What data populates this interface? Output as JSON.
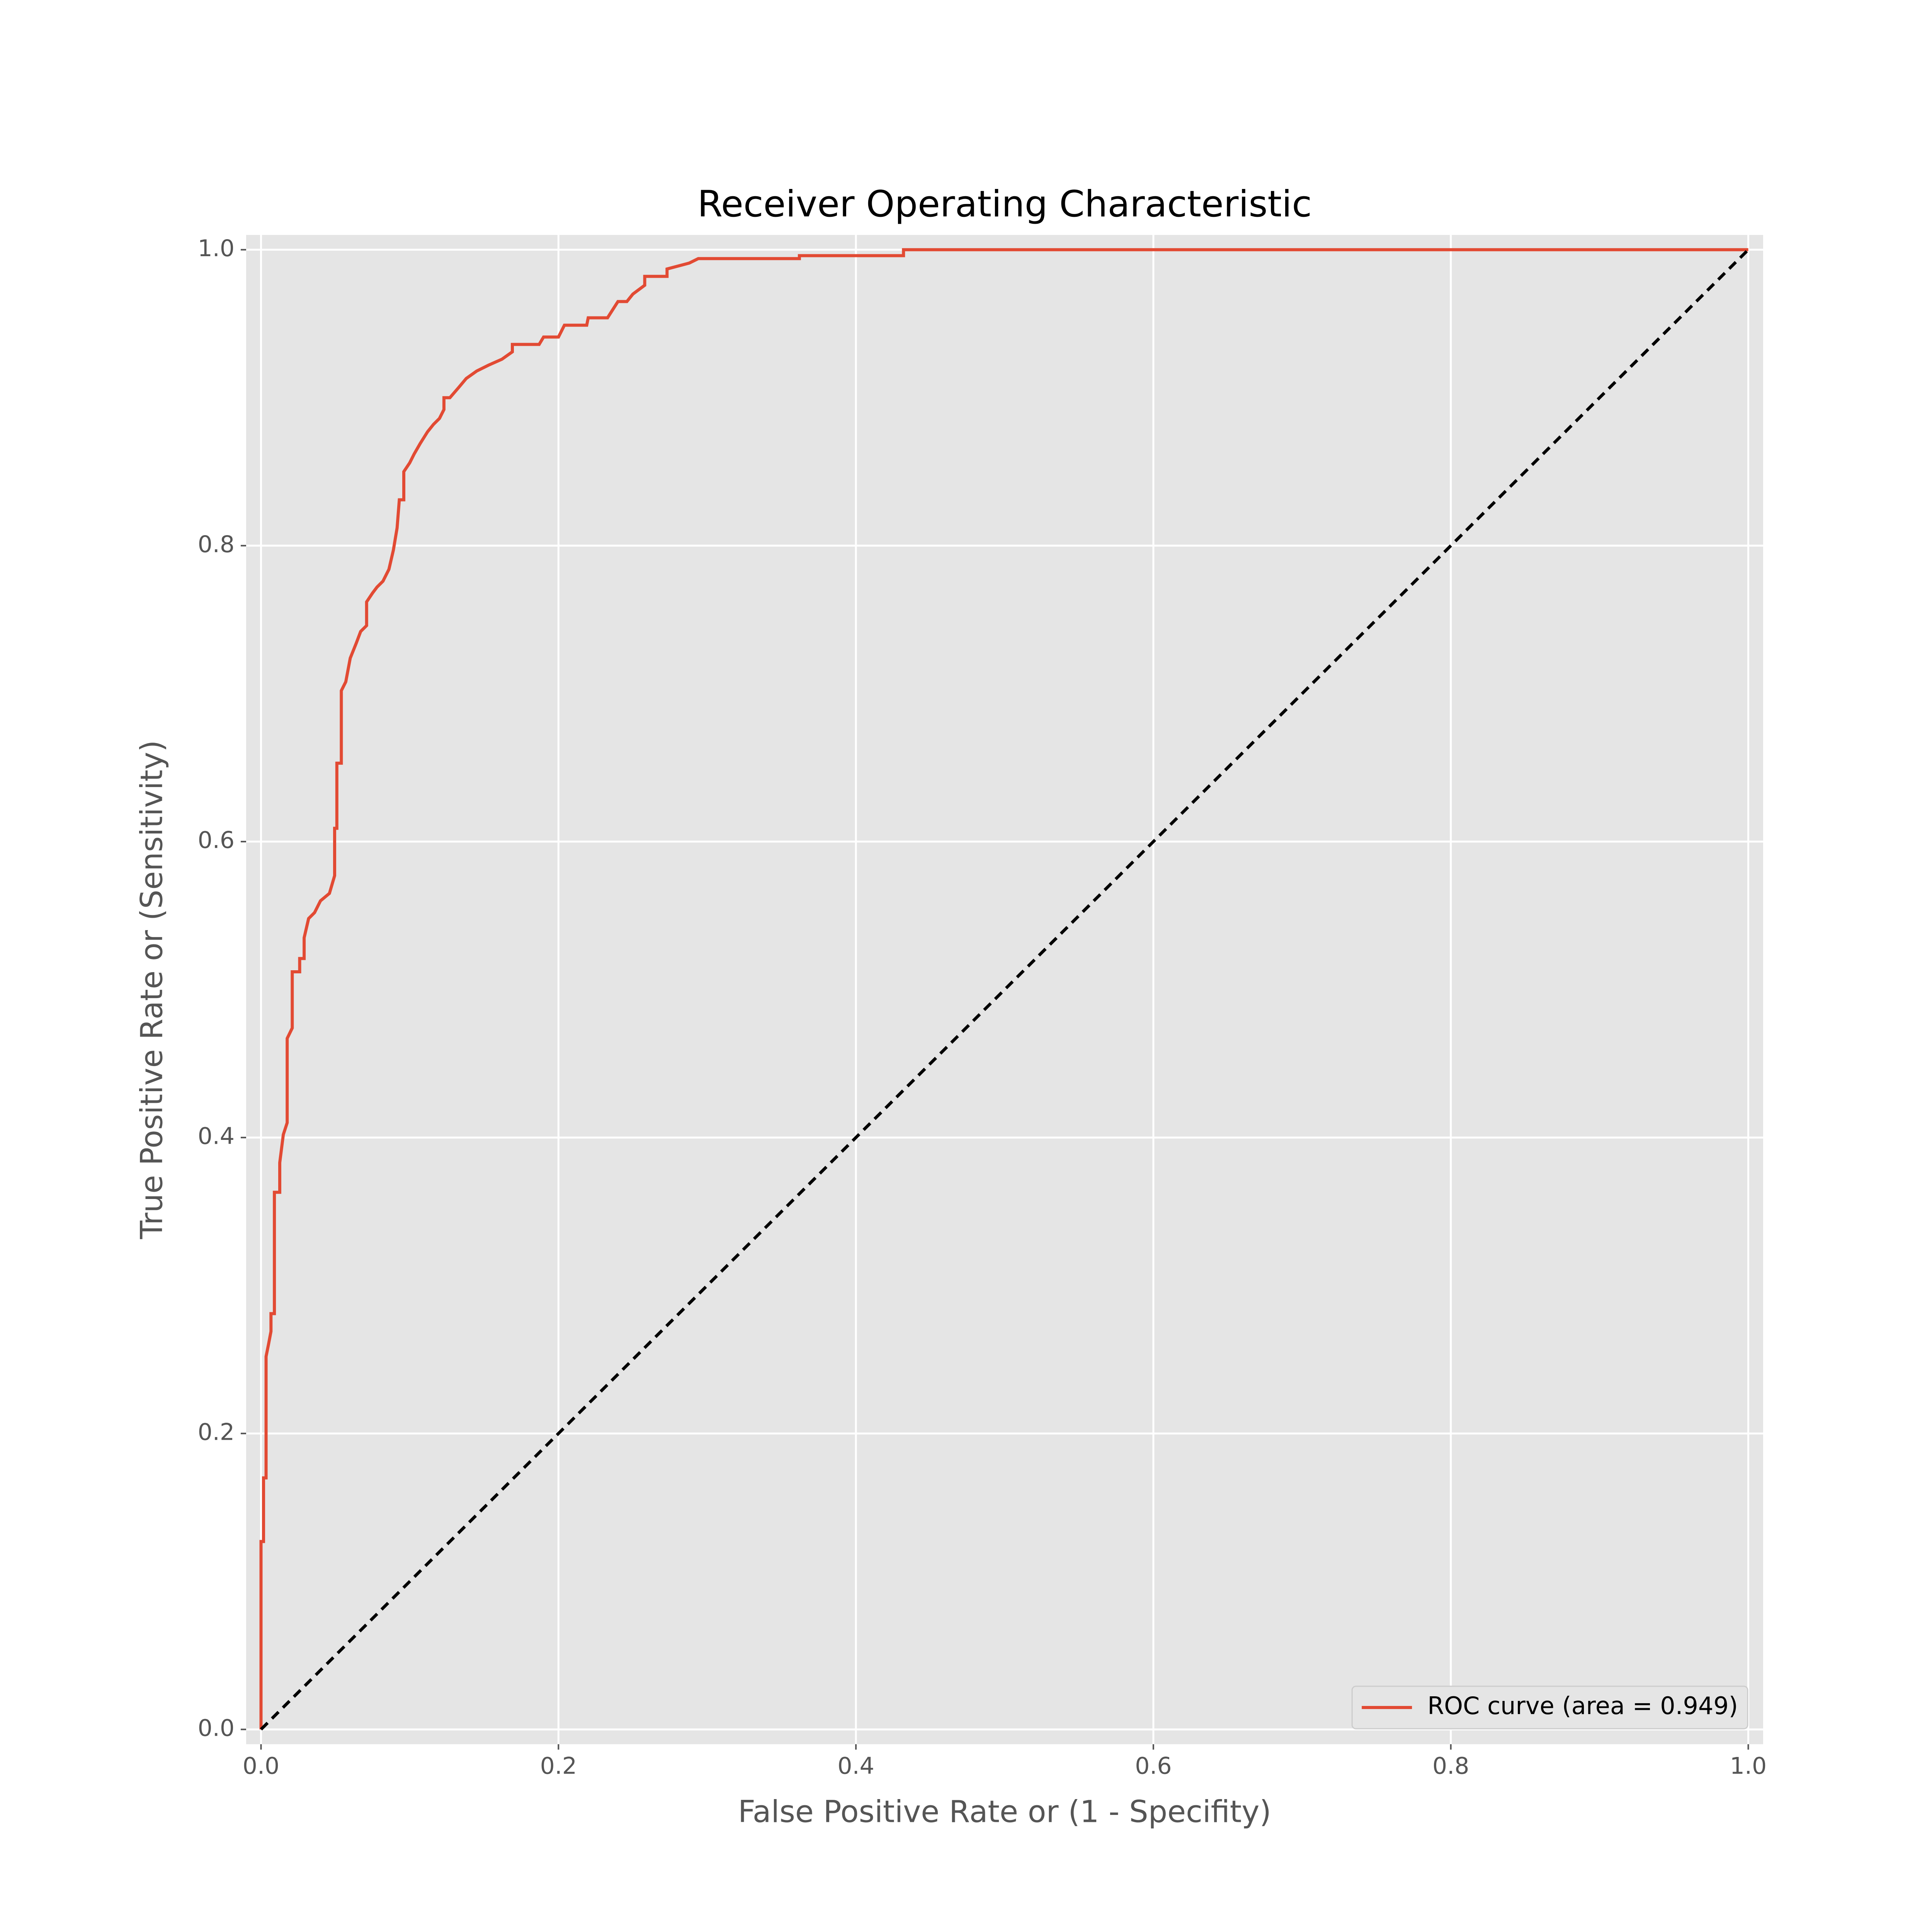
{
  "chart_data": {
    "type": "line",
    "title": "Receiver Operating Characteristic",
    "x_label": "False Positive Rate or (1 - Specifity)",
    "y_label": "True Positive Rate or (Sensitivity)",
    "xlim": [
      -0.01,
      1.01
    ],
    "ylim": [
      -0.01,
      1.01
    ],
    "xticks": [
      {
        "value": 0,
        "label": "0.0"
      },
      0.2,
      0.4,
      0.6,
      0.8,
      {
        "value": 1,
        "label": "1.0"
      }
    ],
    "yticks": [
      {
        "value": 0,
        "label": "0.0"
      },
      0.2,
      0.4,
      0.6,
      0.8,
      {
        "value": 1,
        "label": "1.0"
      }
    ],
    "grid": true,
    "legend": "lower right",
    "series": [
      {
        "name": "ROC curve (area = 0.949)",
        "color": "#e24a33",
        "x": [
          0,
          0,
          0.0017,
          0.0017,
          0.0034,
          0.0034,
          0.005,
          0.0067,
          0.0067,
          0.009,
          0.009,
          0.0126,
          0.0126,
          0.015,
          0.0176,
          0.0176,
          0.021,
          0.021,
          0.026,
          0.026,
          0.029,
          0.029,
          0.032,
          0.036,
          0.04,
          0.046,
          0.0495,
          0.0495,
          0.051,
          0.051,
          0.054,
          0.054,
          0.057,
          0.06,
          0.064,
          0.067,
          0.071,
          0.071,
          0.075,
          0.078,
          0.082,
          0.086,
          0.089,
          0.0915,
          0.093,
          0.096,
          0.096,
          0.1,
          0.103,
          0.107,
          0.112,
          0.116,
          0.12,
          0.123,
          0.123,
          0.127,
          0.133,
          0.138,
          0.145,
          0.153,
          0.162,
          0.169,
          0.169,
          0.187,
          0.19,
          0.2,
          0.204,
          0.219,
          0.22,
          0.233,
          0.24,
          0.246,
          0.25,
          0.258,
          0.258,
          0.273,
          0.273,
          0.288,
          0.294,
          0.362,
          0.362,
          0.432,
          0.432,
          1
        ],
        "values": [
          0,
          0.127,
          0.127,
          0.17,
          0.17,
          0.252,
          0.26,
          0.269,
          0.281,
          0.281,
          0.363,
          0.363,
          0.383,
          0.402,
          0.41,
          0.467,
          0.474,
          0.512,
          0.512,
          0.521,
          0.521,
          0.535,
          0.548,
          0.552,
          0.56,
          0.565,
          0.577,
          0.609,
          0.609,
          0.653,
          0.653,
          0.702,
          0.708,
          0.724,
          0.734,
          0.742,
          0.746,
          0.762,
          0.768,
          0.772,
          0.776,
          0.784,
          0.797,
          0.812,
          0.831,
          0.831,
          0.85,
          0.856,
          0.862,
          0.869,
          0.877,
          0.882,
          0.886,
          0.892,
          0.9,
          0.9,
          0.907,
          0.913,
          0.918,
          0.922,
          0.926,
          0.931,
          0.936,
          0.936,
          0.941,
          0.941,
          0.949,
          0.949,
          0.954,
          0.954,
          0.965,
          0.965,
          0.97,
          0.976,
          0.982,
          0.982,
          0.987,
          0.991,
          0.994,
          0.994,
          0.996,
          0.996,
          1,
          1
        ]
      },
      {
        "color": "#000000",
        "dashed": true,
        "x": [
          0,
          1
        ],
        "values": [
          0,
          1
        ]
      }
    ]
  }
}
